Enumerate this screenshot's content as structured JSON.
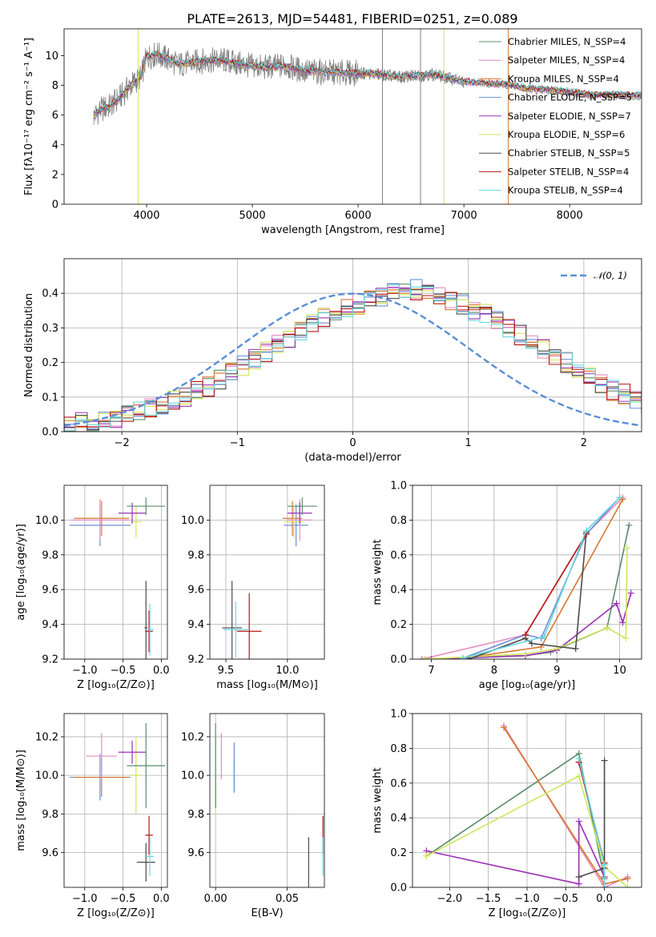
{
  "title": "PLATE=2613, MJD=54481, FIBERID=0251, z=0.089",
  "colors": {
    "Chabrier MILES": "#5a8c6a",
    "Salpeter MILES": "#e48cbf",
    "Kroupa MILES": "#d9762e",
    "Chabrier ELODIE": "#6d8fd6",
    "Salpeter ELODIE": "#9b30b5",
    "Kroupa ELODIE": "#cfe65a",
    "Chabrier STELIB": "#4a4a4a",
    "Salpeter STELIB": "#b81414",
    "Kroupa STELIB": "#6ad6de",
    "data": "#7f7f7f",
    "normal": "#5b8fd6"
  },
  "chart_data": [
    {
      "id": "spectrum",
      "type": "line",
      "xlabel": "wavelength [Angstrom, rest frame]",
      "ylabel": "Flux [fλ10⁻¹⁷ erg cm⁻² s⁻¹ A⁻¹]",
      "xlim": [
        3220,
        8680
      ],
      "ylim": [
        0,
        11.8
      ],
      "xticks": [
        "4000",
        "5000",
        "6000",
        "7000",
        "8000"
      ],
      "yticks": [
        "0",
        "2",
        "4",
        "6",
        "8",
        "10"
      ],
      "grid": false,
      "legend_position": "upper right",
      "legend": [
        "Chabrier MILES, N_SSP=4",
        "Salpeter MILES, N_SSP=4",
        "Kroupa MILES, N_SSP=4",
        "Chabrier ELODIE, N_SSP=5",
        "Salpeter ELODIE, N_SSP=7",
        "Kroupa ELODIE, N_SSP=6",
        "Chabrier STELIB, N_SSP=5",
        "Salpeter STELIB, N_SSP=4",
        "Kroupa STELIB, N_SSP=4"
      ],
      "continuum": {
        "x": [
          3500,
          3550,
          3650,
          3750,
          3850,
          3950,
          4000,
          4100,
          4300,
          4500,
          4700,
          4900,
          5100,
          5300,
          5500,
          5800,
          6100,
          6400,
          6700,
          7000,
          7300,
          7420,
          7600,
          7800,
          8000,
          8200,
          8400,
          8680
        ],
        "y": [
          5.9,
          6.3,
          6.6,
          7.2,
          8.0,
          8.6,
          9.9,
          10.1,
          9.4,
          9.6,
          9.7,
          9.4,
          9.2,
          9.3,
          8.95,
          8.85,
          8.8,
          8.55,
          8.75,
          8.25,
          8.1,
          8.05,
          7.8,
          7.7,
          7.55,
          7.35,
          7.35,
          7.3
        ]
      },
      "vertical_lines": [
        {
          "x": 6230,
          "color": "#7f7f7f"
        },
        {
          "x": 6590,
          "color": "#7f7f7f"
        },
        {
          "x": 7420,
          "color": "#d9762e"
        },
        {
          "x": 3920,
          "color": "#cfe65a"
        },
        {
          "x": 6810,
          "color": "#cfe65a"
        }
      ]
    },
    {
      "id": "residuals",
      "type": "histogram",
      "xlabel": "(data-model)/error",
      "ylabel": "Normed distribution",
      "xlim": [
        -2.5,
        2.5
      ],
      "ylim": [
        0,
        0.5
      ],
      "xticks": [
        "−2",
        "−1",
        "0",
        "1",
        "2"
      ],
      "yticks": [
        "0.0",
        "0.1",
        "0.2",
        "0.3",
        "0.4"
      ],
      "grid": true,
      "bin_width": 0.1,
      "base_hist": [
        0.02,
        0.025,
        0.03,
        0.035,
        0.04,
        0.05,
        0.06,
        0.07,
        0.08,
        0.09,
        0.1,
        0.12,
        0.13,
        0.15,
        0.17,
        0.19,
        0.21,
        0.23,
        0.25,
        0.27,
        0.29,
        0.31,
        0.33,
        0.34,
        0.36,
        0.37,
        0.38,
        0.39,
        0.4,
        0.4,
        0.41,
        0.4,
        0.39,
        0.38,
        0.37,
        0.35,
        0.34,
        0.32,
        0.3,
        0.28,
        0.26,
        0.24,
        0.22,
        0.2,
        0.18,
        0.16,
        0.14,
        0.12,
        0.11,
        0.09,
        0.08,
        0.07,
        0.06,
        0.05,
        0.045,
        0.04,
        0.035,
        0.03,
        0.025,
        0.02
      ],
      "legend": "𝒩(0, 1)",
      "legend_position": "upper right",
      "normal": {
        "mean": 0,
        "sigma": 1
      }
    },
    {
      "id": "age-vs-Z",
      "type": "errorbar",
      "xlabel": "Z [log₁₀(Z/Z⊙)]",
      "ylabel": "age  [log₁₀(age/yr)]",
      "xlim": [
        -1.27,
        0.08
      ],
      "ylim": [
        9.2,
        10.2
      ],
      "xticks": [
        "−1.0",
        "−0.5",
        "0.0"
      ],
      "yticks": [
        "9.2",
        "9.4",
        "9.6",
        "9.8",
        "10.0"
      ],
      "grid": true,
      "points": [
        {
          "model": "Chabrier ELODIE",
          "x": -0.8,
          "xerr": 0.4,
          "y": 9.97,
          "yerr": 0.12
        },
        {
          "model": "Kroupa MILES",
          "x": -0.78,
          "xerr": 0.36,
          "y": 10.01,
          "yerr": 0.1
        },
        {
          "model": "Salpeter MILES",
          "x": -0.8,
          "xerr": 0.38,
          "y": 10.0,
          "yerr": 0.12
        },
        {
          "model": "Kroupa ELODIE",
          "x": -0.33,
          "xerr": 0.07,
          "y": 9.99,
          "yerr": 0.09
        },
        {
          "model": "Salpeter ELODIE",
          "x": -0.38,
          "xerr": 0.18,
          "y": 10.04,
          "yerr": 0.06
        },
        {
          "model": "Chabrier MILES",
          "x": -0.2,
          "xerr": 0.25,
          "y": 10.08,
          "yerr": 0.05
        },
        {
          "model": "Chabrier STELIB",
          "x": -0.2,
          "xerr": 0.02,
          "y": 9.38,
          "yerr": 0.27
        },
        {
          "model": "Salpeter STELIB",
          "x": -0.16,
          "xerr": 0.05,
          "y": 9.36,
          "yerr": 0.12
        },
        {
          "model": "Kroupa STELIB",
          "x": -0.15,
          "xerr": 0.05,
          "y": 9.37,
          "yerr": 0.15
        }
      ]
    },
    {
      "id": "age-vs-mass",
      "type": "errorbar",
      "xlabel": "mass [log₁₀(M/M⊙)]",
      "ylabel": "",
      "xlim": [
        9.37,
        10.3
      ],
      "ylim": [
        9.2,
        10.2
      ],
      "xticks": [
        "9.5",
        "10.0"
      ],
      "yticks": [
        "9.2",
        "9.4",
        "9.6",
        "9.8",
        "10.0"
      ],
      "grid": true,
      "points": [
        {
          "model": "Chabrier ELODIE",
          "x": 10.07,
          "xerr": 0.1,
          "y": 9.97,
          "yerr": 0.12
        },
        {
          "model": "Kroupa MILES",
          "x": 10.04,
          "xerr": 0.08,
          "y": 10.01,
          "yerr": 0.1
        },
        {
          "model": "Salpeter MILES",
          "x": 10.1,
          "xerr": 0.1,
          "y": 10.0,
          "yerr": 0.12
        },
        {
          "model": "Kroupa ELODIE",
          "x": 10.05,
          "xerr": 0.08,
          "y": 9.99,
          "yerr": 0.09
        },
        {
          "model": "Salpeter ELODIE",
          "x": 10.1,
          "xerr": 0.1,
          "y": 10.04,
          "yerr": 0.06
        },
        {
          "model": "Chabrier MILES",
          "x": 10.12,
          "xerr": 0.12,
          "y": 10.08,
          "yerr": 0.05
        },
        {
          "model": "Chabrier STELIB",
          "x": 9.55,
          "xerr": 0.08,
          "y": 9.38,
          "yerr": 0.27
        },
        {
          "model": "Salpeter STELIB",
          "x": 9.69,
          "xerr": 0.1,
          "y": 9.36,
          "yerr": 0.22
        },
        {
          "model": "Kroupa STELIB",
          "x": 9.58,
          "xerr": 0.1,
          "y": 9.37,
          "yerr": 0.16
        }
      ]
    },
    {
      "id": "weight-vs-age",
      "type": "line",
      "xlabel": "age  [log₁₀(age/yr)]",
      "ylabel": "mass weight",
      "xlim": [
        6.7,
        10.35
      ],
      "ylim": [
        0,
        1.0
      ],
      "xticks": [
        "7",
        "8",
        "9",
        "10"
      ],
      "yticks": [
        "0.0",
        "0.2",
        "0.4",
        "0.6",
        "0.8",
        "1.0"
      ],
      "grid": true,
      "series": [
        {
          "model": "Chabrier MILES",
          "x": [
            6.85,
            8.5,
            8.9,
            9.8,
            10.15
          ],
          "y": [
            0.0,
            0.02,
            0.04,
            0.18,
            0.77
          ]
        },
        {
          "model": "Salpeter MILES",
          "x": [
            6.85,
            8.5,
            9.47,
            10.05
          ],
          "y": [
            0.0,
            0.14,
            0.72,
            0.93
          ]
        },
        {
          "model": "Kroupa MILES",
          "x": [
            6.9,
            7.5,
            8.75,
            10.05
          ],
          "y": [
            0.0,
            0.005,
            0.07,
            0.92
          ]
        },
        {
          "model": "Chabrier ELODIE",
          "x": [
            7.5,
            8.5,
            8.75,
            9.47,
            10.0
          ],
          "y": [
            0.005,
            0.14,
            0.12,
            0.72,
            0.93
          ]
        },
        {
          "model": "Salpeter ELODIE",
          "x": [
            7.0,
            8.5,
            9.0,
            9.95,
            10.05,
            10.18
          ],
          "y": [
            0.0,
            0.02,
            0.05,
            0.32,
            0.21,
            0.38
          ]
        },
        {
          "model": "Kroupa ELODIE",
          "x": [
            6.9,
            8.5,
            9.0,
            9.8,
            10.1,
            10.12
          ],
          "y": [
            0.0,
            0.03,
            0.06,
            0.18,
            0.12,
            0.64
          ]
        },
        {
          "model": "Chabrier STELIB",
          "x": [
            7.6,
            8.5,
            8.6,
            9.3,
            9.47
          ],
          "y": [
            0.0,
            0.12,
            0.09,
            0.06,
            0.73
          ]
        },
        {
          "model": "Salpeter STELIB",
          "x": [
            8.5,
            9.47
          ],
          "y": [
            0.14,
            0.72
          ]
        },
        {
          "model": "Kroupa STELIB",
          "x": [
            7.5,
            8.8,
            9.47,
            10.0
          ],
          "y": [
            0.005,
            0.13,
            0.74,
            0.93
          ]
        }
      ]
    },
    {
      "id": "mass-vs-Z",
      "type": "errorbar",
      "xlabel": "Z [log₁₀(Z/Z⊙)]",
      "ylabel": "mass [log₁₀(M/M⊙)]",
      "xlim": [
        -1.27,
        0.08
      ],
      "ylim": [
        9.42,
        10.32
      ],
      "xticks": [
        "−1.0",
        "−0.5",
        "0.0"
      ],
      "yticks": [
        "9.6",
        "9.8",
        "10.0",
        "10.2"
      ],
      "grid": true,
      "points": [
        {
          "model": "Chabrier ELODIE",
          "x": -0.8,
          "xerr": 0.4,
          "y": 9.99,
          "yerr": 0.12
        },
        {
          "model": "Kroupa MILES",
          "x": -0.78,
          "xerr": 0.36,
          "y": 9.99,
          "yerr": 0.1
        },
        {
          "model": "Salpeter MILES",
          "x": -0.78,
          "xerr": 0.2,
          "y": 10.1,
          "yerr": 0.12
        },
        {
          "model": "Kroupa ELODIE",
          "x": -0.33,
          "xerr": 0.07,
          "y": 10.0,
          "yerr": 0.2
        },
        {
          "model": "Salpeter ELODIE",
          "x": -0.38,
          "xerr": 0.18,
          "y": 10.12,
          "yerr": 0.06
        },
        {
          "model": "Chabrier MILES",
          "x": -0.2,
          "xerr": 0.25,
          "y": 10.05,
          "yerr": 0.22
        },
        {
          "model": "Chabrier STELIB",
          "x": -0.2,
          "xerr": 0.12,
          "y": 9.55,
          "yerr": 0.1
        },
        {
          "model": "Salpeter STELIB",
          "x": -0.16,
          "xerr": 0.05,
          "y": 9.69,
          "yerr": 0.1
        },
        {
          "model": "Kroupa STELIB",
          "x": -0.15,
          "xerr": 0.05,
          "y": 9.58,
          "yerr": 0.1
        }
      ]
    },
    {
      "id": "mass-vs-ebv",
      "type": "errorbar",
      "xlabel": "E(B-V)",
      "ylabel": "",
      "xlim": [
        -0.004,
        0.076
      ],
      "ylim": [
        9.42,
        10.32
      ],
      "xticks": [
        "0.00",
        "0.05"
      ],
      "yticks": [
        "9.6",
        "9.8",
        "10.0",
        "10.2"
      ],
      "grid": true,
      "points": [
        {
          "model": "Kroupa ELODIE",
          "x": 0.0,
          "xerr": 0,
          "y": 10.0,
          "yerr": 0.2
        },
        {
          "model": "Chabrier MILES",
          "x": 0.0,
          "xerr": 0,
          "y": 10.05,
          "yerr": 0.22
        },
        {
          "model": "Salpeter MILES",
          "x": 0.004,
          "xerr": 0,
          "y": 10.1,
          "yerr": 0.12
        },
        {
          "model": "Kroupa MILES",
          "x": 0.013,
          "xerr": 0,
          "y": 10.0,
          "yerr": 0.08
        },
        {
          "model": "Chabrier ELODIE",
          "x": 0.013,
          "xerr": 0,
          "y": 10.04,
          "yerr": 0.13
        },
        {
          "model": "Chabrier STELIB",
          "x": 0.065,
          "xerr": 0,
          "y": 9.55,
          "yerr": 0.13
        },
        {
          "model": "Salpeter STELIB",
          "x": 0.075,
          "xerr": 0,
          "y": 9.69,
          "yerr": 0.1
        },
        {
          "model": "Kroupa STELIB",
          "x": 0.075,
          "xerr": 0,
          "y": 9.58,
          "yerr": 0.1
        }
      ]
    },
    {
      "id": "weight-vs-Z",
      "type": "line",
      "xlabel": "Z [log₁₀(Z/Z⊙)]",
      "ylabel": "mass weight",
      "xlim": [
        -2.48,
        0.48
      ],
      "ylim": [
        0,
        1.0
      ],
      "xticks": [
        "−2.0",
        "−1.5",
        "−1.0",
        "−0.5",
        "0.0"
      ],
      "yticks": [
        "0.0",
        "0.2",
        "0.4",
        "0.6",
        "0.8",
        "1.0"
      ],
      "grid": true,
      "series": [
        {
          "model": "Chabrier MILES",
          "x": [
            -2.3,
            -0.33,
            0.0
          ],
          "y": [
            0.18,
            0.77,
            0.05
          ]
        },
        {
          "model": "Salpeter MILES",
          "x": [
            -1.3,
            0.0,
            0.3
          ],
          "y": [
            0.93,
            0.0,
            0.06
          ]
        },
        {
          "model": "Kroupa MILES",
          "x": [
            -1.3,
            -0.0,
            0.3
          ],
          "y": [
            0.92,
            0.02,
            0.05
          ]
        },
        {
          "model": "Chabrier ELODIE",
          "x": [
            -0.33,
            0.0
          ],
          "y": [
            0.72,
            0.13
          ]
        },
        {
          "model": "Salpeter ELODIE",
          "x": [
            -2.3,
            -0.33,
            -0.33,
            0.0
          ],
          "y": [
            0.21,
            0.02,
            0.38,
            0.06
          ]
        },
        {
          "model": "Kroupa ELODIE",
          "x": [
            -2.3,
            -0.33,
            0.0,
            0.3
          ],
          "y": [
            0.18,
            0.64,
            0.12,
            0.0
          ]
        },
        {
          "model": "Chabrier STELIB",
          "x": [
            -0.33,
            0.0,
            0.0
          ],
          "y": [
            0.06,
            0.11,
            0.73
          ]
        },
        {
          "model": "Salpeter STELIB",
          "x": [
            -0.33,
            0.0
          ],
          "y": [
            0.72,
            0.14
          ]
        },
        {
          "model": "Kroupa STELIB",
          "x": [
            -0.33,
            0.0,
            0.0
          ],
          "y": [
            0.74,
            0.13,
            0.0
          ]
        }
      ]
    }
  ]
}
